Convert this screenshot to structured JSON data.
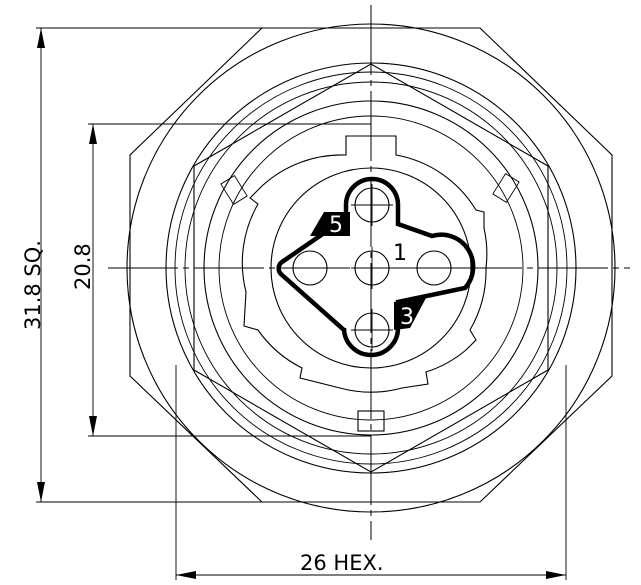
{
  "dimensions": {
    "square": "31.8 SQ.",
    "bore": "20.8",
    "hex": "26 HEX."
  },
  "pins": {
    "pin5": "5",
    "pin1": "1",
    "pin3": "3"
  }
}
